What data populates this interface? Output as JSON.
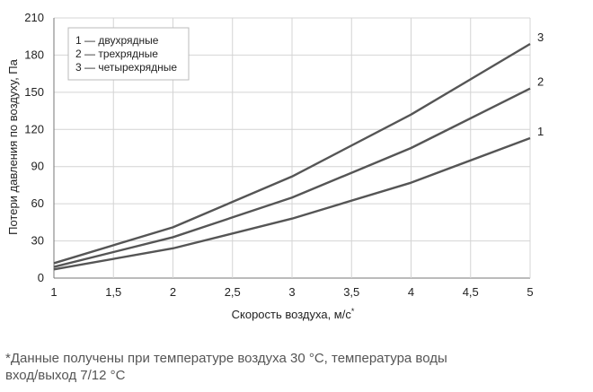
{
  "chart_data": {
    "type": "line",
    "xlabel": "Скорость воздуха, м/с",
    "xlabel_sup": "*",
    "ylabel": "Потери давления по воздуху, Па",
    "xlim": [
      1,
      5
    ],
    "ylim": [
      0,
      210
    ],
    "x_ticks": [
      1,
      1.5,
      2,
      2.5,
      3,
      3.5,
      4,
      4.5,
      5
    ],
    "x_tick_labels": [
      "1",
      "1,5",
      "2",
      "2,5",
      "3",
      "3,5",
      "4",
      "4,5",
      "5"
    ],
    "y_ticks": [
      0,
      30,
      60,
      90,
      120,
      150,
      180,
      210
    ],
    "y_tick_labels": [
      "0",
      "30",
      "60",
      "90",
      "120",
      "150",
      "180",
      "210"
    ],
    "grid": "vertical and horizontal",
    "legend_position": "top-left",
    "legend": [
      "1 — двухрядные",
      "2 — трехрядные",
      "3 — четырехрядные"
    ],
    "line_color": "#555555",
    "series": [
      {
        "end_label": "1",
        "x": [
          1,
          2,
          3,
          4,
          5
        ],
        "y": [
          7,
          24,
          48,
          77,
          113
        ]
      },
      {
        "end_label": "2",
        "x": [
          1,
          2,
          3,
          4,
          5
        ],
        "y": [
          9,
          33,
          65,
          105,
          153
        ]
      },
      {
        "end_label": "3",
        "x": [
          1,
          2,
          3,
          4,
          5
        ],
        "y": [
          12,
          41,
          82,
          132,
          189
        ]
      }
    ]
  },
  "footnote": {
    "line1": "*Данные получены при температуре воздуха 30 °С,  температура воды",
    "line2": "вход/выход 7/12 °С"
  }
}
